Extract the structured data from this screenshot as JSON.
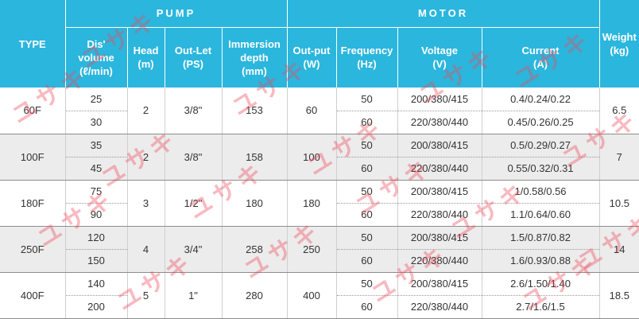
{
  "header": {
    "type": "TYPE",
    "pump": "PUMP",
    "motor": "MOTOR",
    "weight": "Weight\n(kg)",
    "disvolume": "Dis'\nvolume\n(ℓ/min)",
    "head": "Head\n(m)",
    "outlet": "Out-Let\n(PS)",
    "immersion": "Immersion\ndepth\n(mm)",
    "output": "Out-put\n(W)",
    "frequency": "Frequency\n(Hz)",
    "voltage": "Voltage\n(V)",
    "current": "Current\n(A)"
  },
  "rows": [
    {
      "type": "60F",
      "head": "2",
      "outlet": "3/8\"",
      "immersion": "153",
      "output": "60",
      "weight": "6.5",
      "vol1": "25",
      "vol2": "30",
      "freq1": "50",
      "freq2": "60",
      "volt1": "200/380/415",
      "volt2": "220/380/440",
      "cur1": "0.4/0.24/0.22",
      "cur2": "0.45/0.26/0.25"
    },
    {
      "type": "100F",
      "head": "2",
      "outlet": "3/8\"",
      "immersion": "158",
      "output": "100",
      "weight": "7",
      "vol1": "35",
      "vol2": "45",
      "freq1": "50",
      "freq2": "60",
      "volt1": "200/380/415",
      "volt2": "220/380/440",
      "cur1": "0.5/0.29/0.27",
      "cur2": "0.55/0.32/0.31"
    },
    {
      "type": "180F",
      "head": "3",
      "outlet": "1/2\"",
      "immersion": "180",
      "output": "180",
      "weight": "10.5",
      "vol1": "75",
      "vol2": "90",
      "freq1": "50",
      "freq2": "60",
      "volt1": "200/380/415",
      "volt2": "220/380/440",
      "cur1": "1/0.58/0.56",
      "cur2": "1.1/0.64/0.60"
    },
    {
      "type": "250F",
      "head": "4",
      "outlet": "3/4\"",
      "immersion": "258",
      "output": "250",
      "weight": "14",
      "vol1": "120",
      "vol2": "150",
      "freq1": "50",
      "freq2": "60",
      "volt1": "200/380/415",
      "volt2": "220/380/440",
      "cur1": "1.5/0.87/0.82",
      "cur2": "1.6/0.93/0.88"
    },
    {
      "type": "400F",
      "head": "5",
      "outlet": "1\"",
      "immersion": "280",
      "output": "400",
      "weight": "18.5",
      "vol1": "140",
      "vol2": "200",
      "freq1": "50",
      "freq2": "60",
      "volt1": "200/380/415",
      "volt2": "220/380/440",
      "cur1": "2.6/1.50/1.40",
      "cur2": "2.7/1.6/1.5"
    }
  ],
  "watermark": "ユサキ",
  "colors": {
    "header": "#2bb6dd",
    "shade": "#ececec",
    "watermark": "#f0465a"
  }
}
